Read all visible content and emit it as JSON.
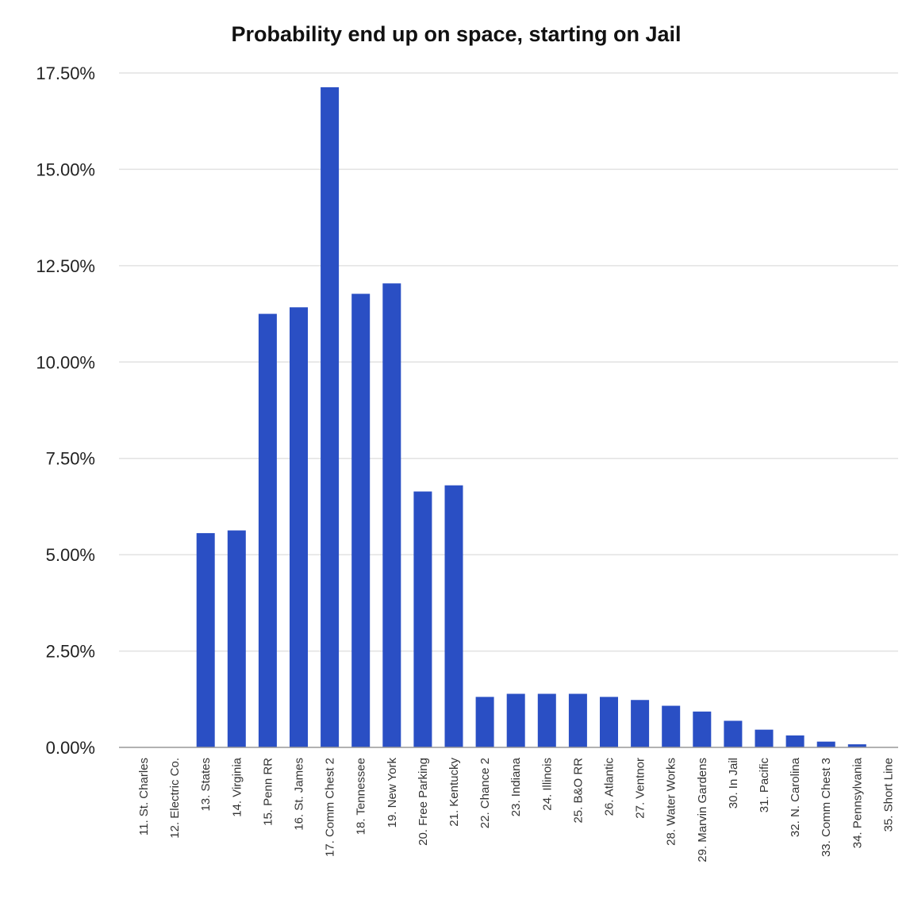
{
  "chart_data": {
    "type": "bar",
    "title": "Probability end up on space, starting on Jail",
    "xlabel": "",
    "ylabel": "",
    "ylim": [
      0,
      0.175
    ],
    "yticks": [
      0,
      0.025,
      0.05,
      0.075,
      0.1,
      0.125,
      0.15,
      0.175
    ],
    "ytick_labels": [
      "0.00%",
      "2.50%",
      "5.00%",
      "7.50%",
      "10.00%",
      "12.50%",
      "15.00%",
      "17.50%"
    ],
    "grid": true,
    "legend": "none",
    "bar_color": "#2a4fc4",
    "categories": [
      "11. St. Charles",
      "12. Electric Co.",
      "13. States",
      "14. Virginia",
      "15. Penn RR",
      "16. St. James",
      "17. Comm Chest 2",
      "18. Tennessee",
      "19. New York",
      "20. Free Parking",
      "21. Kentucky",
      "22. Chance 2",
      "23. Indiana",
      "24. Illinois",
      "25. B&O RR",
      "26. Atlantic",
      "27. Ventnor",
      "28. Water Works",
      "29. Marvin Gardens",
      "30. In Jail",
      "31. Pacific",
      "32. N. Carolina",
      "33. Comm Chest 3",
      "34. Pennsylvania",
      "35. Short Line"
    ],
    "values": [
      0.0,
      0.0,
      0.0556,
      0.0563,
      0.1125,
      0.1142,
      0.1713,
      0.1177,
      0.1204,
      0.0664,
      0.068,
      0.0131,
      0.0139,
      0.0139,
      0.0139,
      0.0131,
      0.0123,
      0.0108,
      0.0093,
      0.0069,
      0.0046,
      0.0031,
      0.0015,
      0.0008,
      0.0
    ]
  }
}
